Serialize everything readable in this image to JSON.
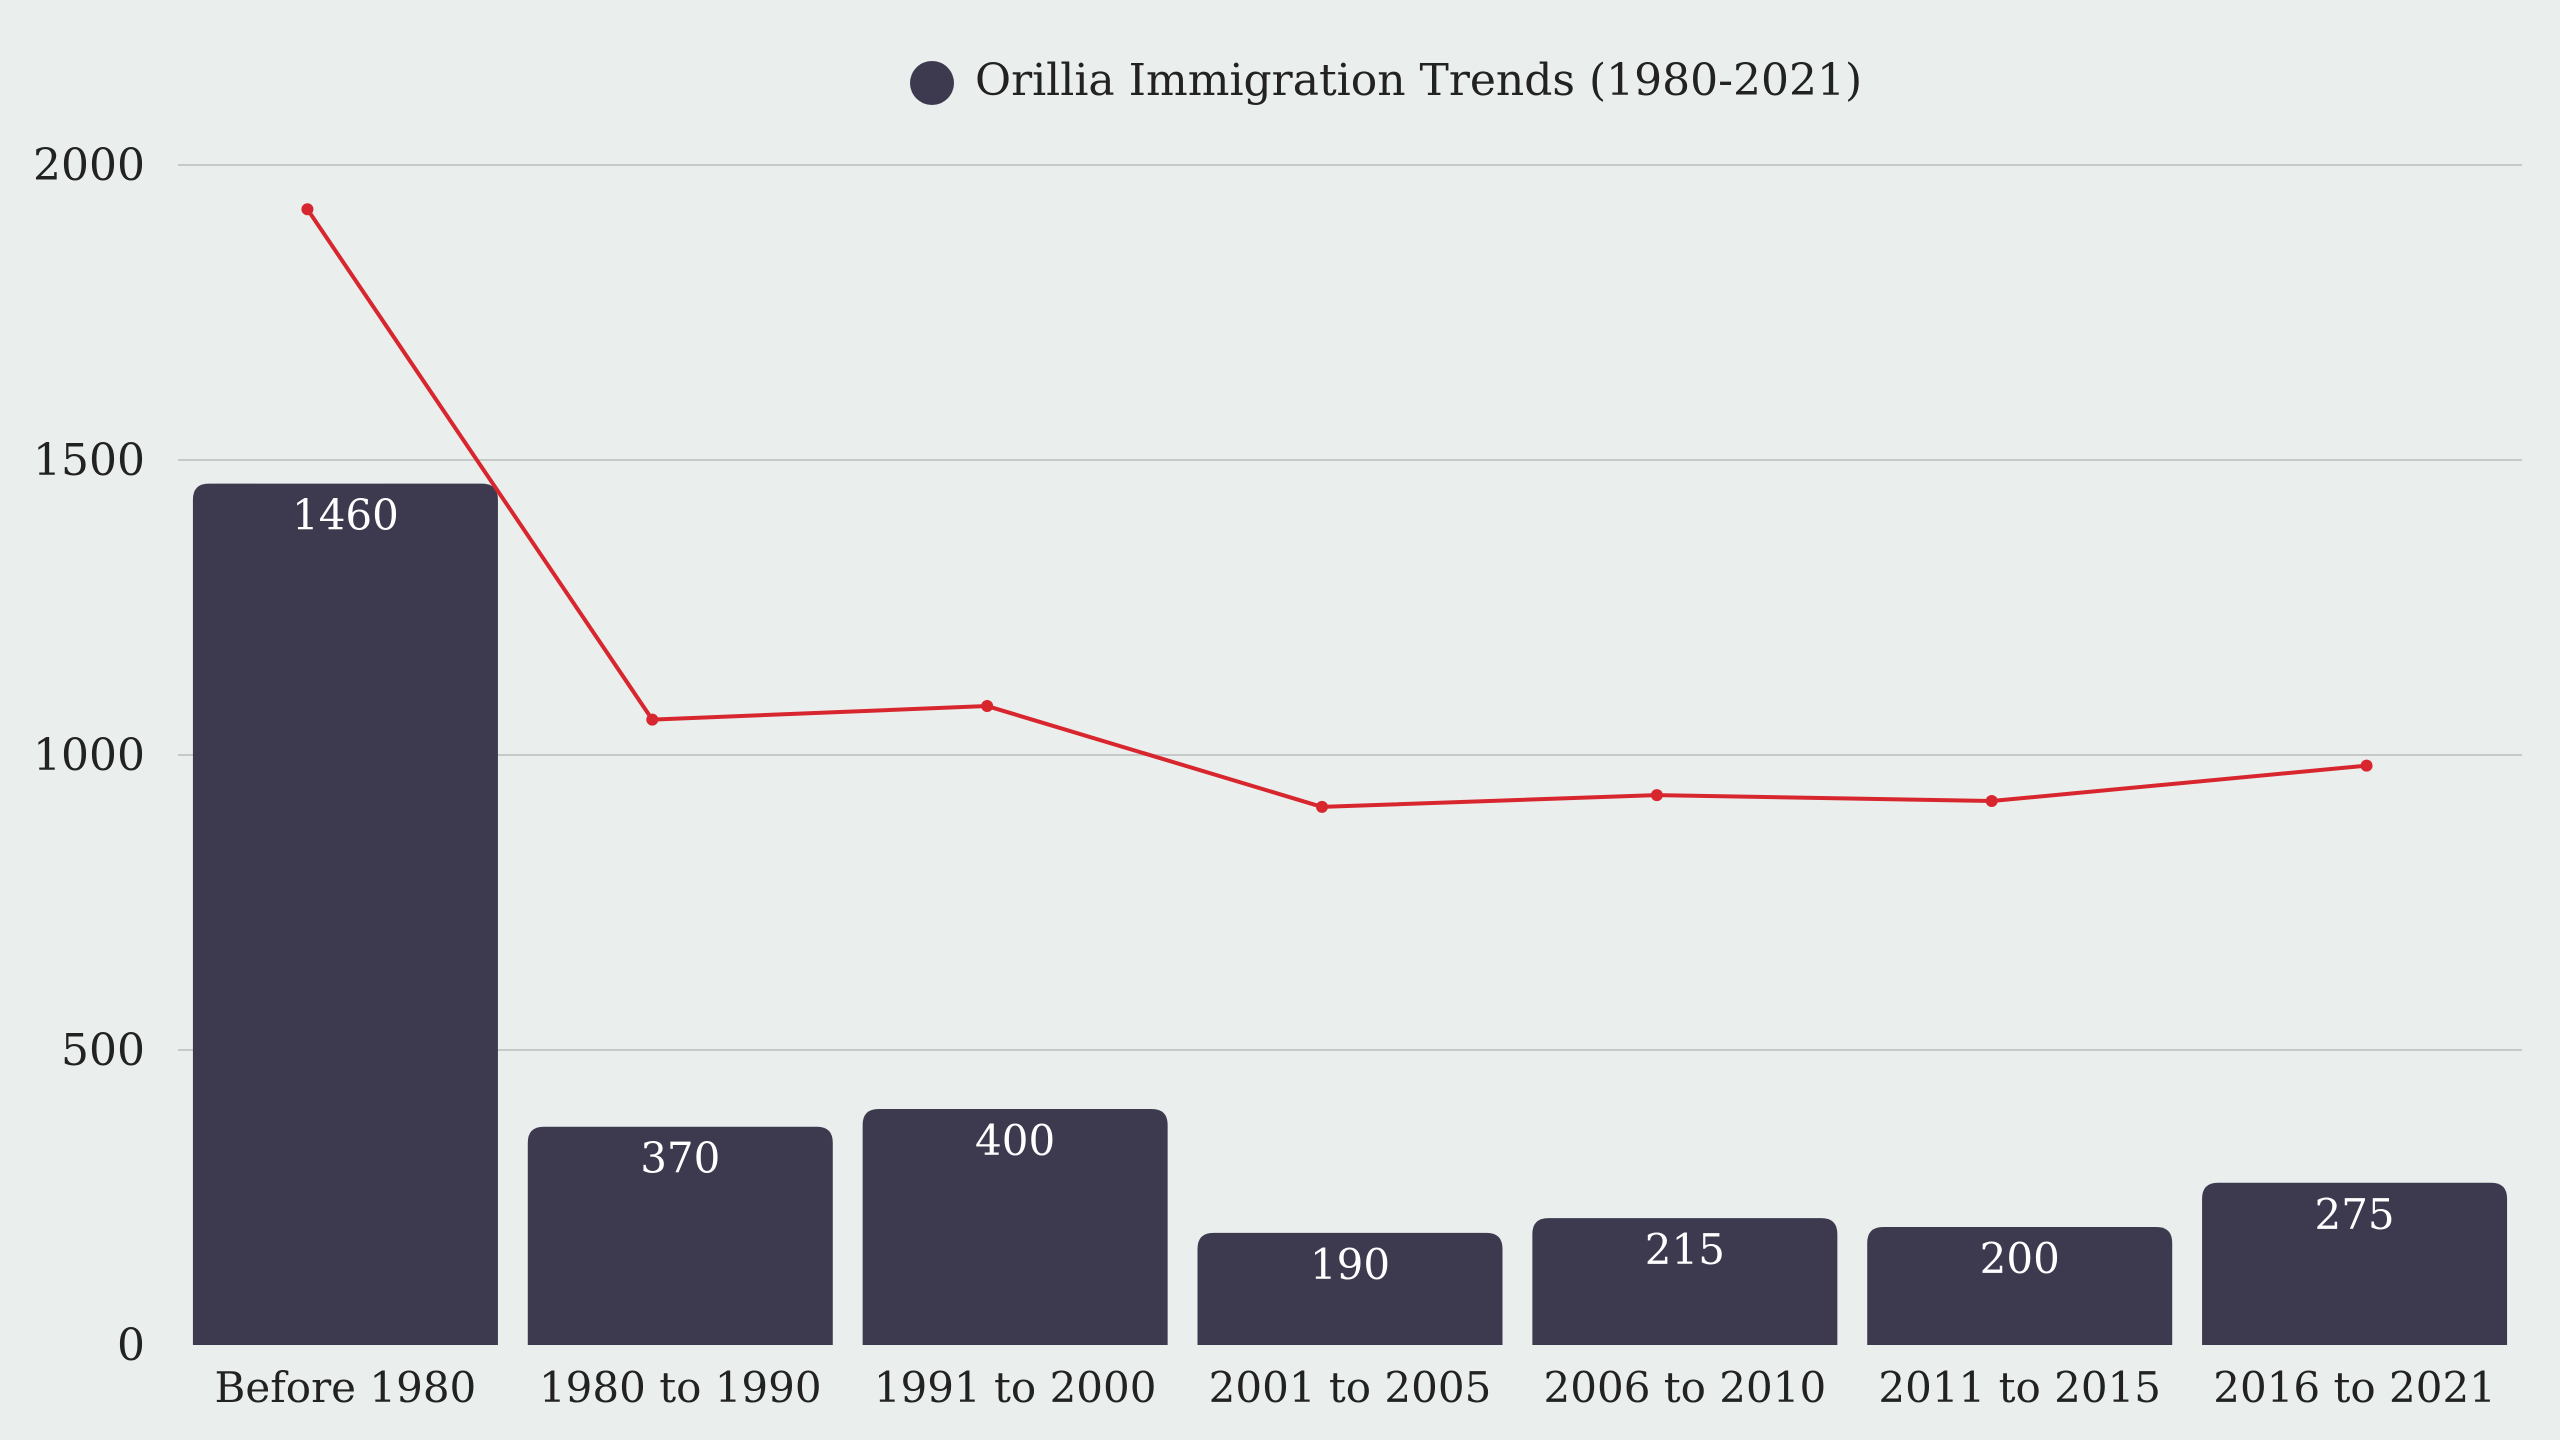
{
  "chart_data": {
    "type": "bar",
    "title": "",
    "xlabel": "",
    "ylabel": "",
    "ylim": [
      0,
      2000
    ],
    "yticks": [
      0,
      500,
      1000,
      1500,
      2000
    ],
    "grid": true,
    "legend_position": "top-center",
    "categories": [
      "Before 1980",
      "1980 to 1990",
      "1991 to 2000",
      "2001 to 2005",
      "2006 to 2010",
      "2011 to 2015",
      "2016 to 2021"
    ],
    "series": [
      {
        "name": "Orillia Immigration Trends (1980-2021)",
        "kind": "bar",
        "color": "#3d3a50",
        "values": [
          1460,
          370,
          400,
          190,
          215,
          200,
          275
        ]
      },
      {
        "kind": "line",
        "color": "#d8262e",
        "values": [
          1925,
          1060,
          1083,
          912,
          932,
          922,
          982
        ]
      }
    ]
  }
}
